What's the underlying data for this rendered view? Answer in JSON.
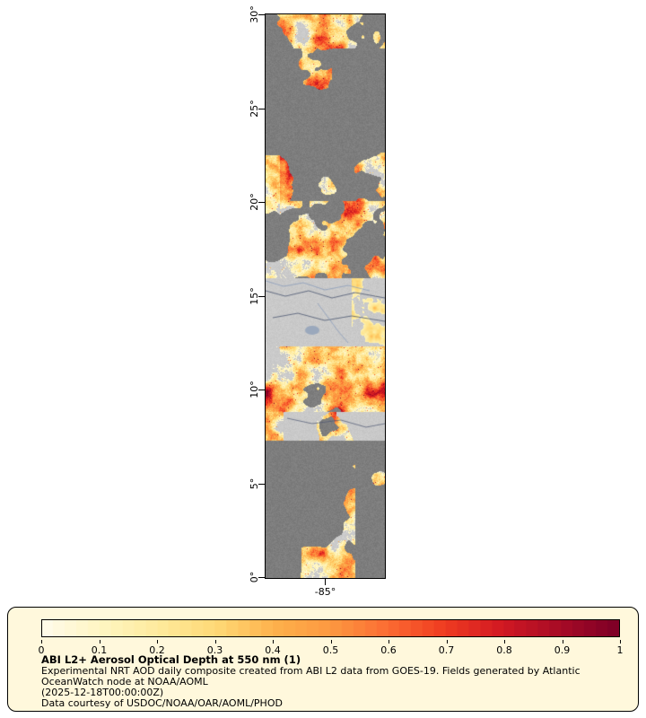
{
  "map": {
    "x_tick_label": "-85°",
    "y_tick_labels": [
      "30°",
      "25°",
      "20°",
      "15°",
      "10°",
      "5°",
      "0°"
    ]
  },
  "legend": {
    "title": "ABI L2+ Aerosol Optical Depth at 550 nm (1)",
    "description": "Experimental NRT AOD daily composite created from ABI L2 data from GOES-19. Fields generated by Atlantic OceanWatch node at NOAA/AOML",
    "timestamp": "(2025-12-18T00:00:00Z)",
    "credit": "Data courtesy of USDOC/NOAA/OAR/AOML/PHOD",
    "background": "#fff8dc",
    "colorbar_tick_labels": [
      "0",
      "0.1",
      "0.2",
      "0.3",
      "0.4",
      "0.5",
      "0.6",
      "0.7",
      "0.8",
      "0.9",
      "1"
    ]
  },
  "chart_data": {
    "type": "heatmap",
    "title": "ABI L2+ Aerosol Optical Depth at 550 nm (1)",
    "x_axis": {
      "tick_labels": [
        "-85°"
      ]
    },
    "y_axis": {
      "tick_labels": [
        "0°",
        "5°",
        "10°",
        "15°",
        "20°",
        "25°",
        "30°"
      ],
      "range_deg": [
        0,
        30
      ]
    },
    "colorbar": {
      "range": [
        0,
        1
      ],
      "ticks": [
        0,
        0.1,
        0.2,
        0.3,
        0.4,
        0.5,
        0.6,
        0.7,
        0.8,
        0.9,
        1
      ],
      "colors": [
        "#fffbe8",
        "#fff6c0",
        "#feea9b",
        "#fed976",
        "#feb24c",
        "#fd9941",
        "#fc6d33",
        "#f03c21",
        "#d31a23",
        "#aa0c26",
        "#800026"
      ]
    },
    "no_data_color": "#7e7e7e",
    "land_color": "#c9c9c9"
  }
}
